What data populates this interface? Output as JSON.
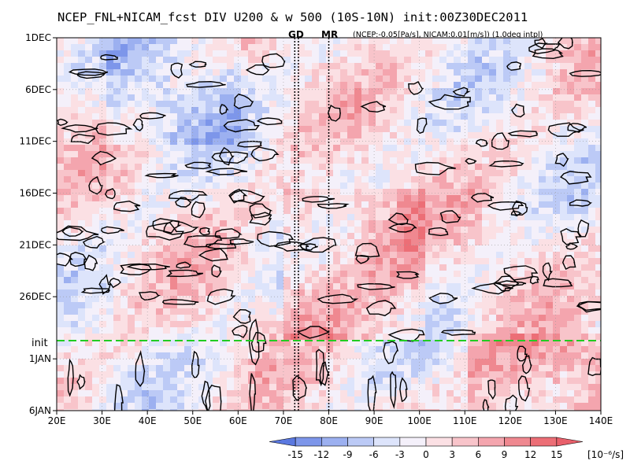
{
  "chart_data": {
    "type": "heatmap",
    "title": "NCEP_FNL+NICAM_fcst DIV U200 & w 500 (10S-10N) init:00Z30DEC2011",
    "note": "(NCEP:-0.05[Pa/s], NICAM:0.01[m/s]) (1.0deg intpl)",
    "markers": {
      "gd_label": "GD",
      "mr_label": "MR",
      "init_label": "init",
      "gd_lon": [
        72.5,
        73.3
      ],
      "mr_lon": 80.0,
      "init_date_index": 29
    },
    "x_axis": {
      "range": [
        20,
        140
      ],
      "ticks": [
        20,
        30,
        40,
        50,
        60,
        70,
        80,
        90,
        100,
        110,
        120,
        130,
        140
      ],
      "tick_labels": [
        "20E",
        "30E",
        "40E",
        "50E",
        "60E",
        "70E",
        "80E",
        "90E",
        "100E",
        "110E",
        "120E",
        "130E",
        "140E"
      ]
    },
    "y_axis": {
      "range_days": [
        "1DEC",
        "6JAN"
      ],
      "tick_labels": [
        "1DEC",
        "6DEC",
        "11DEC",
        "16DEC",
        "21DEC",
        "26DEC",
        "1JAN",
        "6JAN"
      ],
      "tick_day_index": [
        0,
        5,
        10,
        15,
        20,
        25,
        31,
        36
      ]
    },
    "colorbar": {
      "levels": [
        -15,
        -12,
        -9,
        -6,
        -3,
        0,
        3,
        6,
        9,
        12,
        15
      ],
      "labels": [
        "-15",
        "-12",
        "-9",
        "-6",
        "-3",
        "0",
        "3",
        "6",
        "9",
        "12",
        "15"
      ],
      "unit": "[10⁻⁶/s]",
      "colors": [
        "#5a78e0",
        "#7d96ea",
        "#9cb0f0",
        "#bccaf6",
        "#dde4fb",
        "#f4f0fa",
        "#fbe0e4",
        "#f8c4ca",
        "#f4a5ae",
        "#ef8890",
        "#ec6e76",
        "#e85f6a"
      ]
    }
  },
  "colors": {
    "init_line": "#22cc22",
    "marker_label": "#ff2020",
    "contour": "#000000"
  }
}
